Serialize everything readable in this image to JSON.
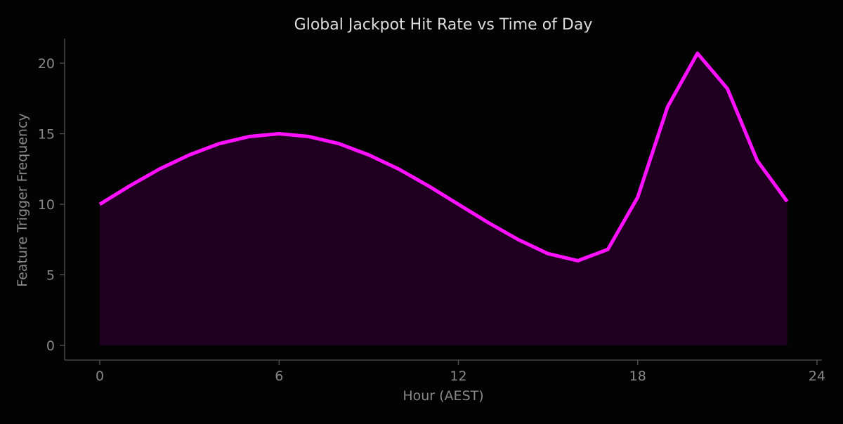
{
  "chart_data": {
    "type": "area",
    "title": "Global Jackpot Hit Rate vs Time of Day",
    "xlabel": "Hour (AEST)",
    "ylabel": "Feature Trigger Frequency",
    "xlim": [
      -1.2,
      24
    ],
    "ylim": [
      -1,
      21.7
    ],
    "xticks": [
      0,
      6,
      12,
      18,
      24
    ],
    "yticks": [
      0,
      5,
      10,
      15,
      20
    ],
    "grid": false,
    "series": [
      {
        "x": [
          0,
          1,
          2,
          3,
          4,
          5,
          6,
          7,
          8,
          9,
          10,
          11,
          12,
          13,
          14,
          15,
          16,
          17,
          18,
          19,
          20,
          21,
          22,
          23
        ],
        "values": [
          10.0,
          11.3,
          12.5,
          13.5,
          14.3,
          14.8,
          15.0,
          14.8,
          14.3,
          13.5,
          12.5,
          11.3,
          10.0,
          8.7,
          7.5,
          6.5,
          6.0,
          6.8,
          10.5,
          16.9,
          20.7,
          18.2,
          13.1,
          10.2
        ],
        "color": "#ff10ff",
        "fill_color": "#200020"
      }
    ],
    "colors": {
      "background": "#030303",
      "axis": "#555555",
      "tick_text": "#888888",
      "title_text": "#dddddd"
    }
  }
}
